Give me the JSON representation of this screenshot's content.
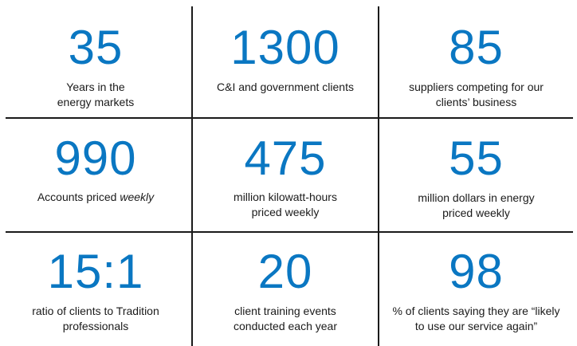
{
  "stats": [
    {
      "value": "35",
      "line1": "Years in the",
      "line2": "energy markets"
    },
    {
      "value": "1300",
      "line1": "C&I and government  clients",
      "line2": ""
    },
    {
      "value": "85",
      "line1": "suppliers competing for our",
      "line2": "clients’ business"
    },
    {
      "value": "990",
      "line1_prefix": "Accounts priced ",
      "line1_emph": "weekly",
      "line2": ""
    },
    {
      "value": "475",
      "line1": "million kilowatt-hours",
      "line2": "priced weekly"
    },
    {
      "value": "55",
      "line1": "million dollars in energy",
      "line2": "priced weekly"
    },
    {
      "value": "15:1",
      "line1": "ratio of clients to Tradition",
      "line2": "professionals"
    },
    {
      "value": "20",
      "line1": "client training events",
      "line2": "conducted each year"
    },
    {
      "value": "98",
      "line1": "% of clients saying they are “likely",
      "line2": "to use our service again”"
    }
  ]
}
